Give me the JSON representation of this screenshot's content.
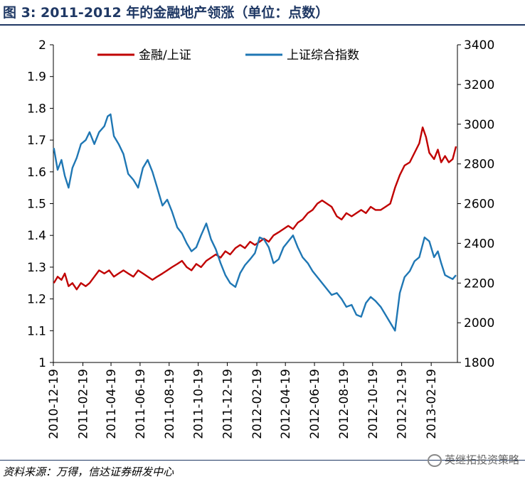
{
  "figure": {
    "title": "图 3:  2011-2012 年的金融地产领涨（单位：点数）",
    "source": "资料来源：万得，信达证券研发中心",
    "watermark": "英继拓投资策略"
  },
  "colors": {
    "ratio_series": "#c00000",
    "index_series": "#1f77b4",
    "title_color": "#1f3864"
  },
  "chart_data": {
    "type": "line",
    "title": "",
    "xlabel": "",
    "ylabel": "",
    "y2label": "",
    "ylim": [
      1,
      2
    ],
    "y2lim": [
      1800,
      3400
    ],
    "yticks": [
      "1",
      "1.1",
      "1.2",
      "1.3",
      "1.4",
      "1.5",
      "1.6",
      "1.7",
      "1.8",
      "1.9",
      "2"
    ],
    "y2ticks": [
      "1800",
      "2000",
      "2200",
      "2400",
      "2600",
      "2800",
      "3000",
      "3200",
      "3400"
    ],
    "xticks": [
      "2010-12-19",
      "2011-02-19",
      "2011-04-19",
      "2011-06-19",
      "2011-08-19",
      "2011-10-19",
      "2011-12-19",
      "2012-02-19",
      "2012-04-19",
      "2012-06-19",
      "2012-08-19",
      "2012-10-19",
      "2012-12-19",
      "2013-02-19"
    ],
    "x_range": [
      "2010-12-19",
      "2013-04-15"
    ],
    "legend_position": "top",
    "grid": false,
    "series": [
      {
        "name": "金融/上证",
        "axis": "left",
        "points": [
          [
            "2010-12-20",
            1.25
          ],
          [
            "2010-12-28",
            1.27
          ],
          [
            "2011-01-05",
            1.26
          ],
          [
            "2011-01-12",
            1.28
          ],
          [
            "2011-01-20",
            1.24
          ],
          [
            "2011-01-28",
            1.25
          ],
          [
            "2011-02-06",
            1.23
          ],
          [
            "2011-02-15",
            1.25
          ],
          [
            "2011-02-25",
            1.24
          ],
          [
            "2011-03-05",
            1.25
          ],
          [
            "2011-03-15",
            1.27
          ],
          [
            "2011-03-25",
            1.29
          ],
          [
            "2011-04-05",
            1.28
          ],
          [
            "2011-04-15",
            1.29
          ],
          [
            "2011-04-25",
            1.27
          ],
          [
            "2011-05-05",
            1.28
          ],
          [
            "2011-05-15",
            1.29
          ],
          [
            "2011-05-25",
            1.28
          ],
          [
            "2011-06-05",
            1.27
          ],
          [
            "2011-06-15",
            1.29
          ],
          [
            "2011-06-25",
            1.28
          ],
          [
            "2011-07-05",
            1.27
          ],
          [
            "2011-07-15",
            1.26
          ],
          [
            "2011-07-25",
            1.27
          ],
          [
            "2011-08-05",
            1.28
          ],
          [
            "2011-08-15",
            1.29
          ],
          [
            "2011-08-25",
            1.3
          ],
          [
            "2011-09-05",
            1.31
          ],
          [
            "2011-09-15",
            1.32
          ],
          [
            "2011-09-25",
            1.3
          ],
          [
            "2011-10-05",
            1.29
          ],
          [
            "2011-10-15",
            1.31
          ],
          [
            "2011-10-25",
            1.3
          ],
          [
            "2011-11-05",
            1.32
          ],
          [
            "2011-11-15",
            1.33
          ],
          [
            "2011-11-25",
            1.34
          ],
          [
            "2011-12-05",
            1.33
          ],
          [
            "2011-12-15",
            1.35
          ],
          [
            "2011-12-25",
            1.34
          ],
          [
            "2012-01-05",
            1.36
          ],
          [
            "2012-01-15",
            1.37
          ],
          [
            "2012-01-25",
            1.36
          ],
          [
            "2012-02-05",
            1.38
          ],
          [
            "2012-02-15",
            1.37
          ],
          [
            "2012-02-25",
            1.38
          ],
          [
            "2012-03-05",
            1.39
          ],
          [
            "2012-03-15",
            1.38
          ],
          [
            "2012-03-25",
            1.4
          ],
          [
            "2012-04-05",
            1.41
          ],
          [
            "2012-04-15",
            1.42
          ],
          [
            "2012-04-25",
            1.43
          ],
          [
            "2012-05-05",
            1.42
          ],
          [
            "2012-05-15",
            1.44
          ],
          [
            "2012-05-25",
            1.45
          ],
          [
            "2012-06-05",
            1.47
          ],
          [
            "2012-06-15",
            1.48
          ],
          [
            "2012-06-25",
            1.5
          ],
          [
            "2012-07-05",
            1.51
          ],
          [
            "2012-07-15",
            1.5
          ],
          [
            "2012-07-25",
            1.49
          ],
          [
            "2012-08-05",
            1.46
          ],
          [
            "2012-08-15",
            1.45
          ],
          [
            "2012-08-25",
            1.47
          ],
          [
            "2012-09-05",
            1.46
          ],
          [
            "2012-09-15",
            1.47
          ],
          [
            "2012-09-25",
            1.48
          ],
          [
            "2012-10-05",
            1.47
          ],
          [
            "2012-10-15",
            1.49
          ],
          [
            "2012-10-25",
            1.48
          ],
          [
            "2012-11-05",
            1.48
          ],
          [
            "2012-11-15",
            1.49
          ],
          [
            "2012-11-25",
            1.5
          ],
          [
            "2012-12-05",
            1.55
          ],
          [
            "2012-12-15",
            1.59
          ],
          [
            "2012-12-25",
            1.62
          ],
          [
            "2013-01-05",
            1.63
          ],
          [
            "2013-01-15",
            1.66
          ],
          [
            "2013-01-25",
            1.69
          ],
          [
            "2013-02-01",
            1.74
          ],
          [
            "2013-02-08",
            1.71
          ],
          [
            "2013-02-15",
            1.66
          ],
          [
            "2013-02-25",
            1.64
          ],
          [
            "2013-03-05",
            1.67
          ],
          [
            "2013-03-12",
            1.63
          ],
          [
            "2013-03-20",
            1.65
          ],
          [
            "2013-03-28",
            1.63
          ],
          [
            "2013-04-05",
            1.64
          ],
          [
            "2013-04-12",
            1.68
          ]
        ]
      },
      {
        "name": "上证综合指数",
        "axis": "right",
        "points": [
          [
            "2010-12-20",
            2880
          ],
          [
            "2010-12-28",
            2770
          ],
          [
            "2011-01-05",
            2820
          ],
          [
            "2011-01-12",
            2740
          ],
          [
            "2011-01-20",
            2680
          ],
          [
            "2011-01-28",
            2780
          ],
          [
            "2011-02-06",
            2830
          ],
          [
            "2011-02-15",
            2900
          ],
          [
            "2011-02-25",
            2920
          ],
          [
            "2011-03-05",
            2960
          ],
          [
            "2011-03-15",
            2900
          ],
          [
            "2011-03-25",
            2960
          ],
          [
            "2011-04-05",
            2990
          ],
          [
            "2011-04-12",
            3040
          ],
          [
            "2011-04-18",
            3050
          ],
          [
            "2011-04-25",
            2940
          ],
          [
            "2011-05-05",
            2900
          ],
          [
            "2011-05-15",
            2850
          ],
          [
            "2011-05-25",
            2750
          ],
          [
            "2011-06-05",
            2720
          ],
          [
            "2011-06-15",
            2680
          ],
          [
            "2011-06-25",
            2780
          ],
          [
            "2011-07-05",
            2820
          ],
          [
            "2011-07-15",
            2760
          ],
          [
            "2011-07-25",
            2680
          ],
          [
            "2011-08-05",
            2590
          ],
          [
            "2011-08-15",
            2620
          ],
          [
            "2011-08-25",
            2560
          ],
          [
            "2011-09-05",
            2480
          ],
          [
            "2011-09-15",
            2450
          ],
          [
            "2011-09-25",
            2400
          ],
          [
            "2011-10-05",
            2360
          ],
          [
            "2011-10-15",
            2380
          ],
          [
            "2011-10-25",
            2440
          ],
          [
            "2011-11-05",
            2500
          ],
          [
            "2011-11-15",
            2420
          ],
          [
            "2011-11-25",
            2370
          ],
          [
            "2011-12-05",
            2300
          ],
          [
            "2011-12-15",
            2240
          ],
          [
            "2011-12-25",
            2200
          ],
          [
            "2012-01-05",
            2180
          ],
          [
            "2012-01-15",
            2250
          ],
          [
            "2012-01-25",
            2290
          ],
          [
            "2012-02-05",
            2320
          ],
          [
            "2012-02-15",
            2350
          ],
          [
            "2012-02-25",
            2430
          ],
          [
            "2012-03-05",
            2420
          ],
          [
            "2012-03-15",
            2380
          ],
          [
            "2012-03-25",
            2300
          ],
          [
            "2012-04-05",
            2320
          ],
          [
            "2012-04-15",
            2380
          ],
          [
            "2012-04-25",
            2410
          ],
          [
            "2012-05-05",
            2440
          ],
          [
            "2012-05-15",
            2380
          ],
          [
            "2012-05-25",
            2330
          ],
          [
            "2012-06-05",
            2300
          ],
          [
            "2012-06-15",
            2260
          ],
          [
            "2012-06-25",
            2230
          ],
          [
            "2012-07-05",
            2200
          ],
          [
            "2012-07-15",
            2170
          ],
          [
            "2012-07-25",
            2140
          ],
          [
            "2012-08-05",
            2150
          ],
          [
            "2012-08-15",
            2120
          ],
          [
            "2012-08-25",
            2080
          ],
          [
            "2012-09-05",
            2090
          ],
          [
            "2012-09-15",
            2040
          ],
          [
            "2012-09-25",
            2030
          ],
          [
            "2012-10-05",
            2100
          ],
          [
            "2012-10-15",
            2130
          ],
          [
            "2012-10-25",
            2110
          ],
          [
            "2012-11-05",
            2080
          ],
          [
            "2012-11-15",
            2040
          ],
          [
            "2012-11-25",
            2000
          ],
          [
            "2012-12-05",
            1960
          ],
          [
            "2012-12-15",
            2150
          ],
          [
            "2012-12-25",
            2230
          ],
          [
            "2013-01-05",
            2260
          ],
          [
            "2013-01-15",
            2310
          ],
          [
            "2013-01-25",
            2330
          ],
          [
            "2013-02-05",
            2430
          ],
          [
            "2013-02-15",
            2410
          ],
          [
            "2013-02-25",
            2330
          ],
          [
            "2013-03-05",
            2360
          ],
          [
            "2013-03-12",
            2300
          ],
          [
            "2013-03-20",
            2240
          ],
          [
            "2013-03-28",
            2230
          ],
          [
            "2013-04-05",
            2220
          ],
          [
            "2013-04-12",
            2240
          ]
        ]
      }
    ]
  }
}
